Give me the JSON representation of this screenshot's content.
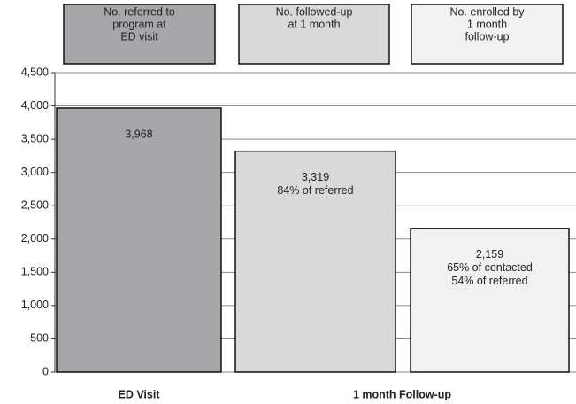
{
  "chart_data": {
    "type": "bar",
    "categories": [
      [
        "No. referred to",
        "program at",
        "ED visit"
      ],
      [
        "No. followed-up",
        "at 1 month"
      ],
      [
        "No. enrolled by",
        "1 month",
        "follow-up"
      ]
    ],
    "values": [
      3968,
      3319,
      2159
    ],
    "value_labels": [
      "3,968",
      "3,319",
      "2,159"
    ],
    "annotations": [
      [],
      [
        "84% of referred"
      ],
      [
        "65% of contacted",
        "54% of referred"
      ]
    ],
    "colors": [
      "#a7a7a9",
      "#d9d9da",
      "#f1f1f1"
    ],
    "x_group_labels": [
      "ED Visit",
      "1 month Follow-up"
    ],
    "ylim": [
      0,
      4500
    ],
    "yticks": [
      0,
      500,
      {
        "value": 1000,
        "label": "1,000"
      },
      {
        "value": 1500,
        "label": "1,500"
      },
      {
        "value": 2000,
        "label": "2,000"
      },
      {
        "value": 2500,
        "label": "2,500"
      },
      {
        "value": 3000,
        "label": "3,000"
      },
      {
        "value": 3500,
        "label": "3,500"
      },
      {
        "value": 4000,
        "label": "4,000"
      },
      {
        "value": 4500,
        "label": "4,500"
      }
    ],
    "grid": true
  }
}
